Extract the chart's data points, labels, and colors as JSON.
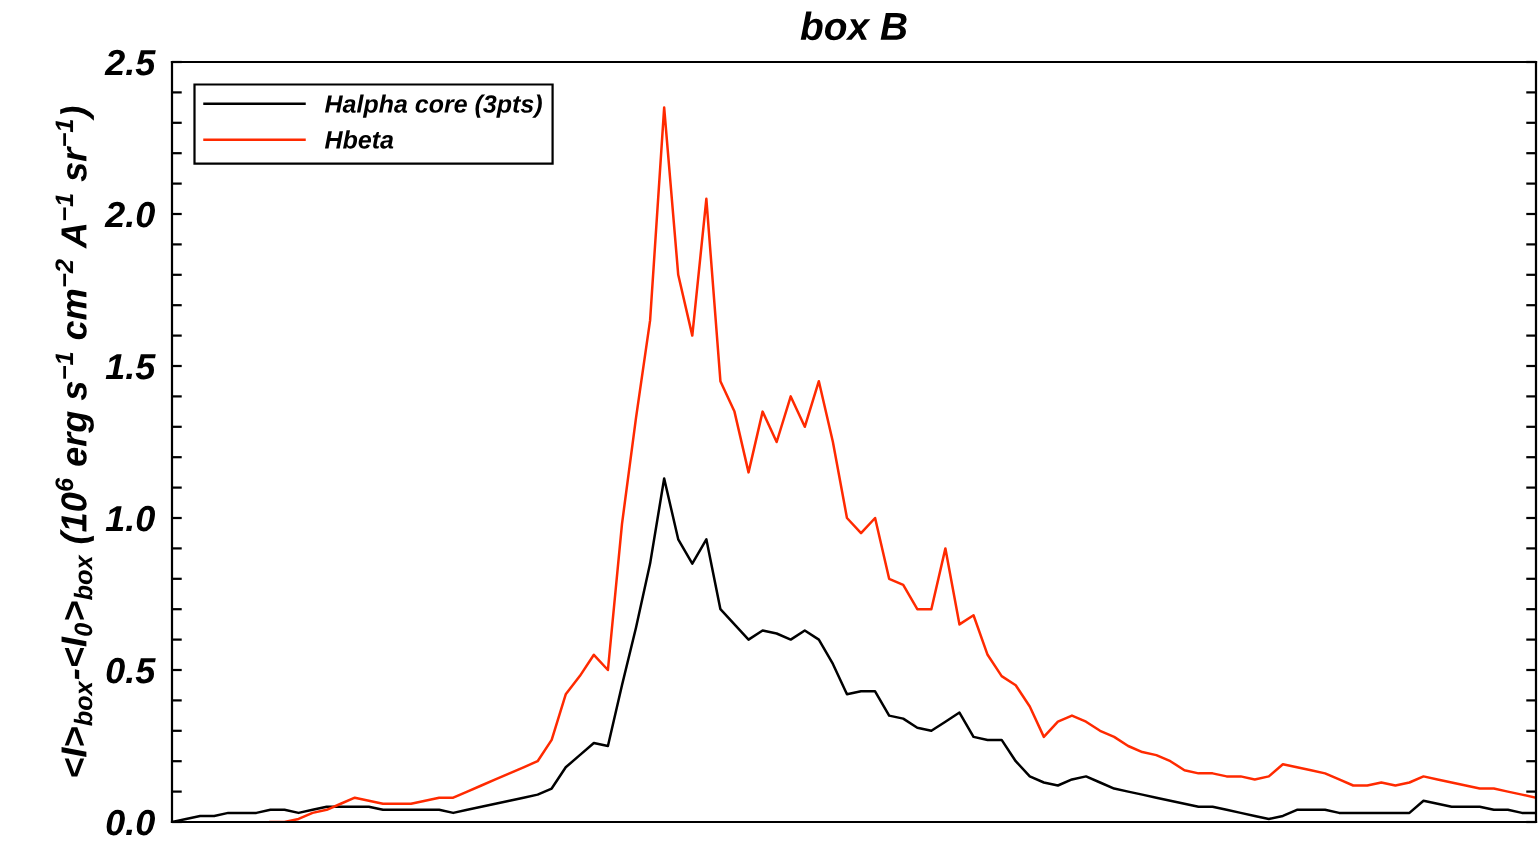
{
  "chart_data": {
    "type": "line",
    "title": "box B",
    "ylabel": "<I>$_{box}$-<I$_{0}$>$_{box}$ (10$^{6}$ erg s$^{−1}$ cm$^{−2}$ A$^{−1}$ sr$^{−1}$)",
    "categories": [
      null,
      null,
      null,
      null,
      null,
      null,
      null,
      null,
      null,
      null,
      null,
      null,
      null,
      null,
      null,
      null,
      null,
      null,
      null,
      null,
      null,
      null,
      null,
      null,
      null,
      null,
      null,
      null,
      null,
      null,
      null,
      null,
      null,
      null,
      null,
      null,
      null,
      null,
      null,
      null,
      null,
      null,
      null,
      null,
      null,
      null,
      null,
      null,
      null,
      null,
      null,
      null,
      null,
      null,
      null,
      null,
      null,
      null,
      null,
      null,
      null,
      null,
      null,
      null,
      null,
      null,
      null,
      null,
      null,
      null,
      null,
      null,
      null,
      null,
      null,
      null,
      null,
      null,
      null,
      null,
      null,
      null,
      null,
      null,
      null,
      null,
      null,
      null,
      null,
      null,
      null,
      null,
      null,
      null,
      null,
      null,
      null,
      null
    ],
    "series": [
      {
        "name": "Halpha core (3pts)",
        "color": "#000000",
        "values": [
          0.0,
          0.01,
          0.02,
          0.02,
          0.03,
          0.03,
          0.03,
          0.04,
          0.04,
          0.03,
          0.04,
          0.05,
          0.05,
          0.05,
          0.05,
          0.04,
          0.04,
          0.04,
          0.04,
          0.04,
          0.03,
          0.04,
          0.05,
          0.06,
          0.07,
          0.08,
          0.09,
          0.11,
          0.18,
          0.22,
          0.26,
          0.25,
          0.45,
          0.64,
          0.85,
          1.13,
          0.93,
          0.85,
          0.93,
          0.7,
          0.65,
          0.6,
          0.63,
          0.62,
          0.6,
          0.63,
          0.6,
          0.52,
          0.42,
          0.43,
          0.43,
          0.35,
          0.34,
          0.31,
          0.3,
          0.33,
          0.36,
          0.28,
          0.27,
          0.27,
          0.2,
          0.15,
          0.13,
          0.12,
          0.14,
          0.15,
          0.13,
          0.11,
          0.1,
          0.09,
          0.08,
          0.07,
          0.06,
          0.05,
          0.05,
          0.04,
          0.03,
          0.02,
          0.01,
          0.02,
          0.04,
          0.04,
          0.04,
          0.03,
          0.03,
          0.03,
          0.03,
          0.03,
          0.03,
          0.07,
          0.06,
          0.05,
          0.05,
          0.05,
          0.04,
          0.04,
          0.03,
          0.03
        ]
      },
      {
        "name": "Hbeta",
        "color": "#ff2a00",
        "values": [
          null,
          null,
          null,
          null,
          null,
          null,
          null,
          0.0,
          0.0,
          0.01,
          0.03,
          0.04,
          0.06,
          0.08,
          0.07,
          0.06,
          0.06,
          0.06,
          0.07,
          0.08,
          0.08,
          0.1,
          0.12,
          0.14,
          0.16,
          0.18,
          0.2,
          0.27,
          0.42,
          0.48,
          0.55,
          0.5,
          0.98,
          1.33,
          1.65,
          2.35,
          1.8,
          1.6,
          2.05,
          1.45,
          1.35,
          1.15,
          1.35,
          1.25,
          1.4,
          1.3,
          1.45,
          1.25,
          1.0,
          0.95,
          1.0,
          0.8,
          0.78,
          0.7,
          0.7,
          0.9,
          0.65,
          0.68,
          0.55,
          0.48,
          0.45,
          0.38,
          0.28,
          0.33,
          0.35,
          0.33,
          0.3,
          0.28,
          0.25,
          0.23,
          0.22,
          0.2,
          0.17,
          0.16,
          0.16,
          0.15,
          0.15,
          0.14,
          0.15,
          0.19,
          0.18,
          0.17,
          0.16,
          0.14,
          0.12,
          0.12,
          0.13,
          0.12,
          0.13,
          0.15,
          0.14,
          0.13,
          0.12,
          0.11,
          0.11,
          0.1,
          0.09,
          0.08
        ]
      }
    ],
    "ylim": [
      0,
      2.5
    ],
    "yticks": [
      {
        "value": 0,
        "label": "0.0"
      },
      {
        "value": 0.1,
        "label": null
      },
      {
        "value": 0.2,
        "label": null
      },
      {
        "value": 0.3,
        "label": null
      },
      {
        "value": 0.4,
        "label": null
      },
      {
        "value": 0.5,
        "label": "0.5"
      },
      {
        "value": 0.6,
        "label": null
      },
      {
        "value": 0.7,
        "label": null
      },
      {
        "value": 0.8,
        "label": null
      },
      {
        "value": 0.9,
        "label": null
      },
      {
        "value": 1.0,
        "label": "1.0"
      },
      {
        "value": 1.1,
        "label": null
      },
      {
        "value": 1.2,
        "label": null
      },
      {
        "value": 1.3,
        "label": null
      },
      {
        "value": 1.4,
        "label": null
      },
      {
        "value": 1.5,
        "label": "1.5"
      },
      {
        "value": 1.6,
        "label": null
      },
      {
        "value": 1.7,
        "label": null
      },
      {
        "value": 1.8,
        "label": null
      },
      {
        "value": 1.9,
        "label": null
      },
      {
        "value": 2.0,
        "label": "2.0"
      },
      {
        "value": 2.1,
        "label": null
      },
      {
        "value": 2.2,
        "label": null
      },
      {
        "value": 2.3,
        "label": null
      },
      {
        "value": 2.4,
        "label": null
      },
      {
        "value": 2.5,
        "label": "2.5"
      }
    ],
    "legend": "top left",
    "grid": false,
    "tick_labels": "y"
  }
}
